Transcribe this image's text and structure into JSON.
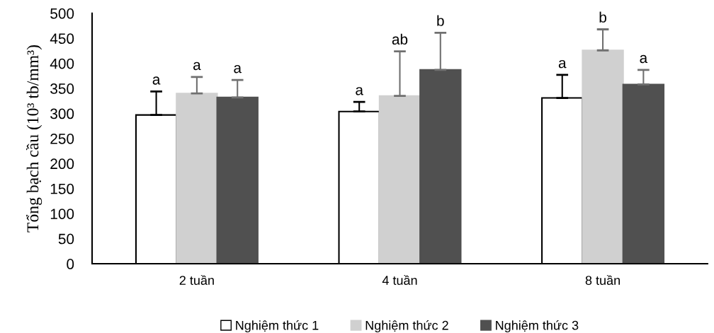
{
  "chart_data": {
    "type": "bar",
    "ylabel": "Tổng bạch cầu (10³ tb/mm³)",
    "categories": [
      "2 tuần",
      "4 tuần",
      "8 tuần"
    ],
    "series": [
      {
        "name": "Nghiệm thức 1",
        "color": "#ffffff",
        "values": [
          297,
          304,
          331
        ],
        "errors": [
          47,
          19,
          46
        ]
      },
      {
        "name": "Nghiệm thức 2",
        "color": "#d0d0d0",
        "values": [
          340,
          335,
          426
        ],
        "errors": [
          33,
          89,
          42
        ]
      },
      {
        "name": "Nghiệm thức 3",
        "color": "#505050",
        "values": [
          332,
          387,
          358
        ],
        "errors": [
          35,
          74,
          29
        ]
      }
    ],
    "annotations": [
      "a",
      "a",
      "a",
      "a",
      "ab",
      "b",
      "a",
      "b",
      "a"
    ],
    "ylim": [
      0,
      500
    ],
    "yticks": [
      0,
      50,
      100,
      150,
      200,
      250,
      300,
      350,
      400,
      450,
      500
    ],
    "grid": false,
    "legend": "bottom"
  }
}
